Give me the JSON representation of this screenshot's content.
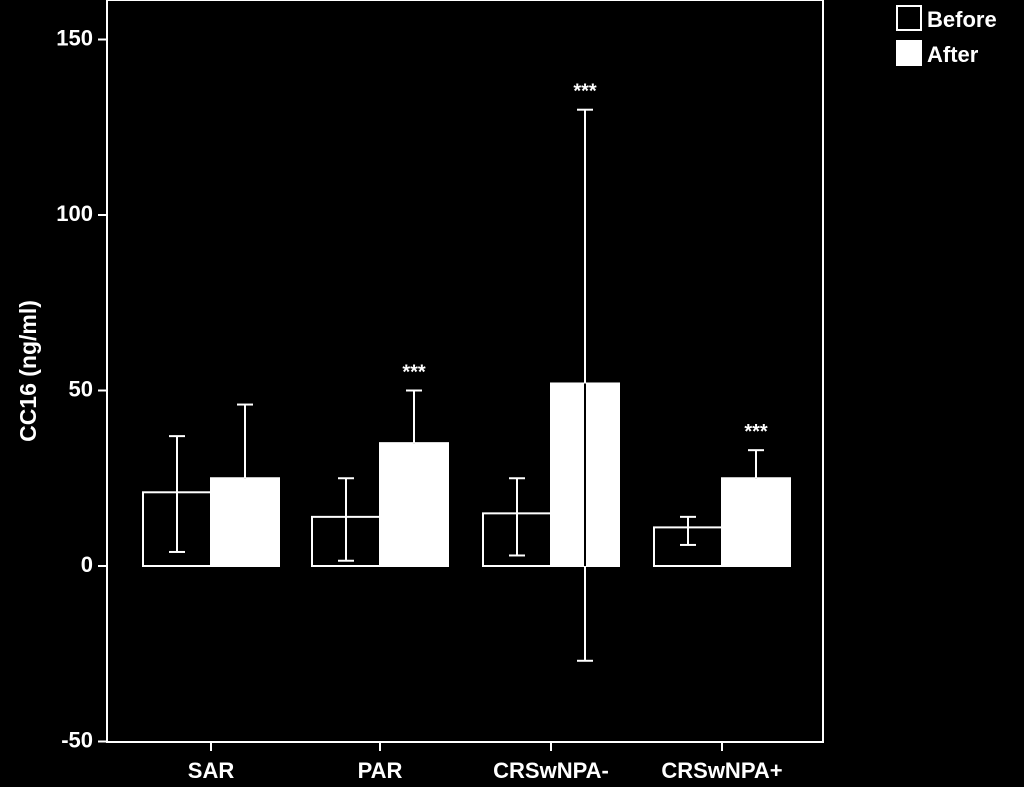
{
  "chart_data": {
    "type": "bar",
    "categories": [
      "SAR",
      "PAR",
      "CRSwNPA-",
      "CRSwNPA+"
    ],
    "series": [
      {
        "name": "Before",
        "values": [
          21,
          14,
          15,
          11
        ],
        "error": [
          [
            4,
            37
          ],
          [
            1.5,
            25
          ],
          [
            3,
            25
          ],
          [
            6,
            14
          ]
        ],
        "fill": "#000000"
      },
      {
        "name": "After",
        "values": [
          25,
          35,
          52,
          25
        ],
        "error": [
          [
            null,
            46
          ],
          [
            null,
            50
          ],
          [
            -27,
            130
          ],
          [
            null,
            33
          ]
        ],
        "fill": "#ffffff"
      }
    ],
    "significance": [
      "",
      "***",
      "***",
      "***"
    ],
    "ylabel": "CC16 (ng/ml)",
    "xlabel": "",
    "ylim": [
      -50,
      150
    ],
    "yticks": [
      -50,
      0,
      50,
      100,
      150
    ],
    "grid": false,
    "legend_position": "top-right",
    "colors": {
      "background": "#000000",
      "foreground": "#ffffff"
    }
  }
}
